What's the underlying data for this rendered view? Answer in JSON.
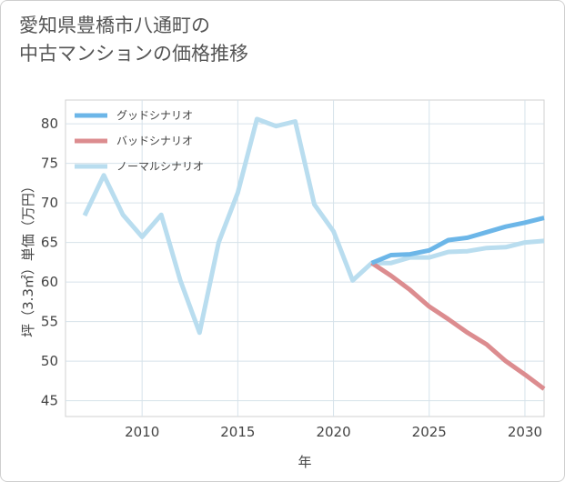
{
  "title": {
    "line1": "愛知県豊橋市八通町の",
    "line2": "中古マンションの価格推移"
  },
  "chart_data": {
    "type": "line",
    "title": "愛知県豊橋市八通町の中古マンションの価格推移",
    "xlabel": "年",
    "ylabel": "坪（3.3㎡）単価（万円）",
    "xlim": [
      2006,
      2031
    ],
    "ylim": [
      43,
      83
    ],
    "x_ticks": [
      2010,
      2015,
      2020,
      2025,
      2030
    ],
    "y_ticks": [
      45,
      50,
      55,
      60,
      65,
      70,
      75,
      80
    ],
    "grid": true,
    "legend_position": "top-left",
    "series": [
      {
        "name": "グッドシナリオ",
        "color": "#6cb6e8",
        "x": [
          2022,
          2023,
          2024,
          2025,
          2026,
          2027,
          2028,
          2029,
          2030,
          2031
        ],
        "values": [
          62.4,
          63.4,
          63.5,
          64.0,
          65.3,
          65.6,
          66.3,
          67.0,
          67.5,
          68.1
        ]
      },
      {
        "name": "バッドシナリオ",
        "color": "#dc8c8f",
        "x": [
          2022,
          2023,
          2024,
          2025,
          2026,
          2027,
          2028,
          2029,
          2030,
          2031
        ],
        "values": [
          62.4,
          60.8,
          59.0,
          56.9,
          55.3,
          53.6,
          52.1,
          50.0,
          48.3,
          46.5
        ]
      },
      {
        "name": "ノーマルシナリオ",
        "color": "#b9ddef",
        "x": [
          2007,
          2008,
          2009,
          2010,
          2011,
          2012,
          2013,
          2014,
          2015,
          2016,
          2017,
          2018,
          2019,
          2020,
          2021,
          2022,
          2023,
          2024,
          2025,
          2026,
          2027,
          2028,
          2029,
          2030,
          2031
        ],
        "values": [
          68.4,
          73.5,
          68.5,
          65.7,
          68.5,
          60.2,
          53.6,
          65.0,
          71.3,
          80.6,
          79.7,
          80.3,
          69.8,
          66.4,
          60.2,
          62.4,
          62.4,
          63.1,
          63.1,
          63.8,
          63.9,
          64.3,
          64.4,
          65.0,
          65.2
        ]
      }
    ]
  }
}
